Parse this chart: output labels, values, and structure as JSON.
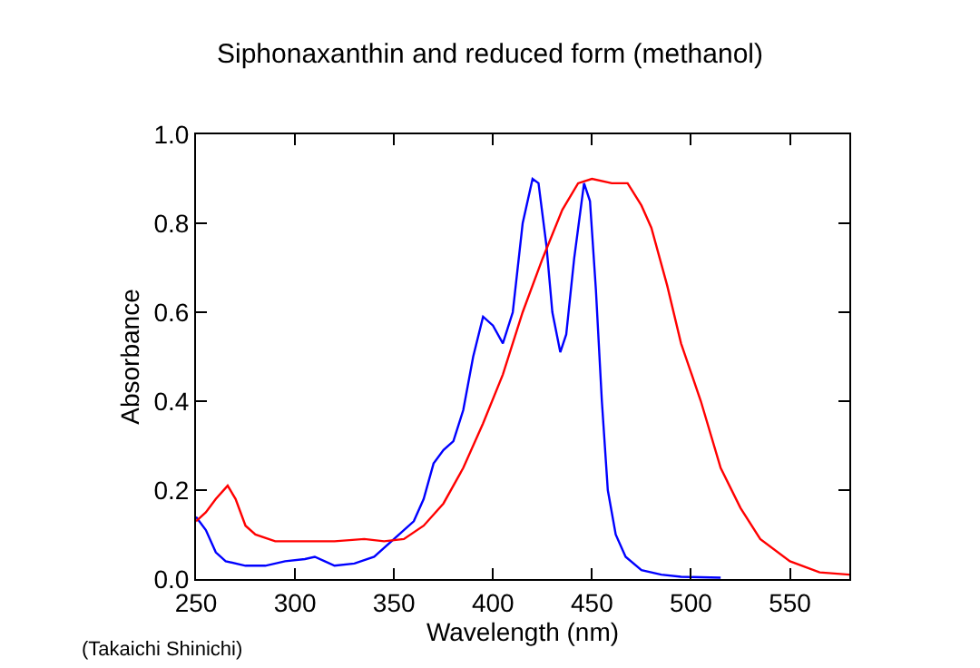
{
  "chart_data": {
    "type": "line",
    "title": "Siphonaxanthin and reduced form (methanol)",
    "xlabel": "Wavelength (nm)",
    "ylabel": "Absorbance",
    "annotations": [
      "(Takaichi Shinichi)"
    ],
    "xlim": [
      250,
      580
    ],
    "xticks": [
      250,
      300,
      350,
      400,
      450,
      500,
      550
    ],
    "ylim": [
      0,
      1
    ],
    "yticks": [
      {
        "value": 0,
        "label": "0.0"
      },
      {
        "value": 0.2,
        "label": "0.2"
      },
      {
        "value": 0.4,
        "label": "0.4"
      },
      {
        "value": 0.6,
        "label": "0.6"
      },
      {
        "value": 0.8,
        "label": "0.8"
      },
      {
        "value": 1,
        "label": "1.0"
      }
    ],
    "grid": false,
    "marker": "none",
    "line_style": "solid",
    "series": [
      {
        "color": "#0000ff",
        "x": [
          250,
          255,
          260,
          265,
          275,
          285,
          295,
          305,
          310,
          315,
          320,
          330,
          340,
          350,
          360,
          365,
          370,
          375,
          380,
          385,
          390,
          395,
          400,
          405,
          410,
          415,
          420,
          423,
          427,
          430,
          434,
          437,
          441,
          446,
          449,
          452,
          455,
          458,
          462,
          467,
          475,
          485,
          495,
          515
        ],
        "values": [
          0.14,
          0.11,
          0.06,
          0.04,
          0.03,
          0.03,
          0.04,
          0.045,
          0.05,
          0.04,
          0.03,
          0.035,
          0.05,
          0.09,
          0.13,
          0.18,
          0.26,
          0.29,
          0.31,
          0.38,
          0.5,
          0.59,
          0.57,
          0.53,
          0.6,
          0.8,
          0.9,
          0.89,
          0.75,
          0.6,
          0.51,
          0.55,
          0.72,
          0.89,
          0.85,
          0.65,
          0.4,
          0.2,
          0.1,
          0.05,
          0.02,
          0.01,
          0.005,
          0.003
        ]
      },
      {
        "color": "#ff0000",
        "x": [
          250,
          255,
          260,
          266,
          270,
          275,
          280,
          290,
          300,
          320,
          335,
          345,
          355,
          365,
          375,
          385,
          395,
          405,
          415,
          425,
          435,
          443,
          450,
          460,
          468,
          475,
          480,
          488,
          495,
          505,
          515,
          525,
          535,
          550,
          565,
          580
        ],
        "values": [
          0.13,
          0.15,
          0.18,
          0.21,
          0.18,
          0.12,
          0.1,
          0.085,
          0.085,
          0.085,
          0.09,
          0.085,
          0.09,
          0.12,
          0.17,
          0.25,
          0.35,
          0.46,
          0.6,
          0.72,
          0.83,
          0.89,
          0.9,
          0.89,
          0.89,
          0.84,
          0.79,
          0.66,
          0.53,
          0.4,
          0.25,
          0.16,
          0.09,
          0.04,
          0.015,
          0.01
        ]
      }
    ]
  }
}
